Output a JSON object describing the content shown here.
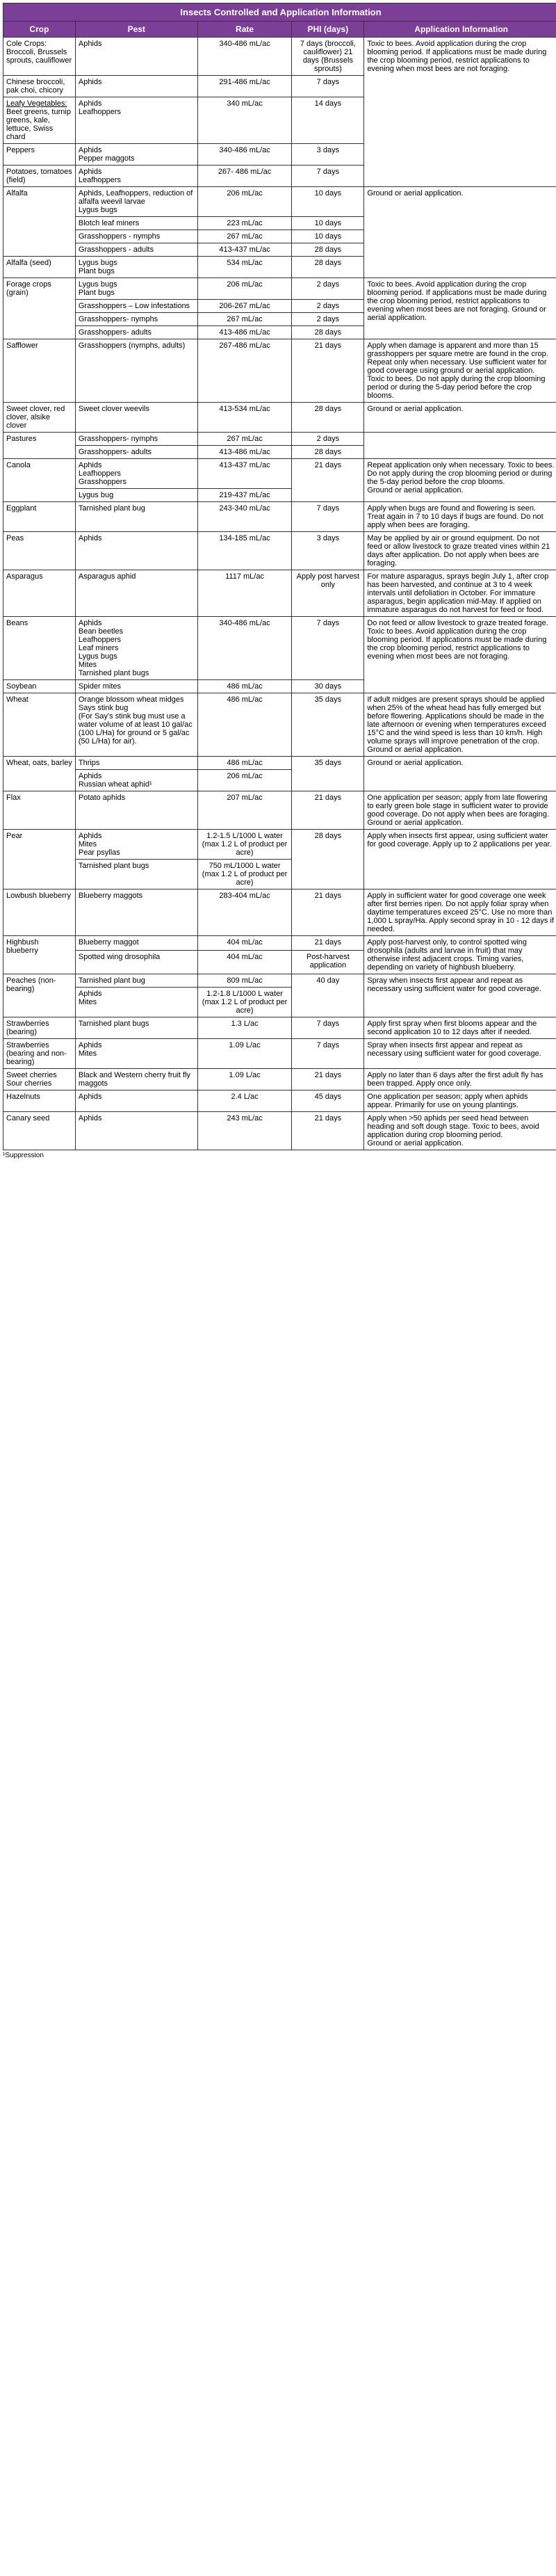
{
  "title": "Insects Controlled and Application Information",
  "headers": {
    "crop": "Crop",
    "pest": "Pest",
    "rate": "Rate",
    "phi": "PHI (days)",
    "appinfo": "Application Information"
  },
  "rows": {
    "cole": {
      "crop_html": "Cole Crops: Broccoli, Brussels sprouts, cauliflower",
      "pest": "Aphids",
      "rate": "340-486 mL/ac",
      "phi": "7 days (broccoli, cauliflower) 21 days (Brussels sprouts)",
      "app": "Toxic to bees. Avoid application during the crop blooming period. If applications must be made during the crop blooming period, restrict applications to evening when most bees are not foraging."
    },
    "chinese": {
      "crop": "Chinese broccoli, pak choi, chicory",
      "pest": "Aphids",
      "rate": "291-486 mL/ac",
      "phi": "7 days"
    },
    "leafy": {
      "crop_label": "Leafy Vegetables:",
      "crop_rest": "Beet greens, turnip greens, kale, lettuce, Swiss chard",
      "pest": "Aphids\nLeafhoppers",
      "rate": "340 mL/ac",
      "phi": "14 days"
    },
    "peppers": {
      "crop": "Peppers",
      "pest": "Aphids\nPepper maggots",
      "rate": "340-486 mL/ac",
      "phi": "3 days"
    },
    "potatoes": {
      "crop": "Potatoes, tomatoes (field)",
      "pest": "Aphids\nLeafhoppers",
      "rate": "267- 486 mL/ac",
      "phi": "7 days"
    },
    "alfalfa": {
      "crop": "Alfalfa",
      "r1": {
        "pest": "Aphids, Leafhoppers, reduction of alfalfa weevil larvae\nLygus bugs",
        "rate": "206 mL/ac",
        "phi": "10 days",
        "app": "Ground or aerial application."
      },
      "r2": {
        "pest": "Blotch leaf miners",
        "rate": "223 mL/ac",
        "phi": "10 days"
      },
      "r3": {
        "pest": "Grasshoppers - nymphs",
        "rate": "267 mL/ac",
        "phi": "10 days"
      },
      "r4": {
        "pest": "Grasshoppers - adults",
        "rate": "413-437 mL/ac",
        "phi": "28 days"
      }
    },
    "alfalfa_seed": {
      "crop": "Alfalfa (seed)",
      "pest": "Lygus bugs\nPlant bugs",
      "rate": "534 mL/ac",
      "phi": "28 days"
    },
    "forage": {
      "crop": "Forage crops (grain)",
      "r1": {
        "pest": "Lygus bugs\nPlant bugs",
        "rate": "206 mL/ac",
        "phi": "2 days"
      },
      "r2": {
        "pest": "Grasshoppers – Low infestations",
        "rate": "206-267 mL/ac",
        "phi": "2 days"
      },
      "r3": {
        "pest": "Grasshoppers- nymphs",
        "rate": "267 mL/ac",
        "phi": "2 days"
      },
      "r4": {
        "pest": "Grasshoppers- adults",
        "rate": "413-486 mL/ac",
        "phi": "28 days"
      },
      "app": "Toxic to bees. Avoid application during the crop blooming period. If applications must be made during the crop blooming period, restrict applications to evening when most bees are not foraging. Ground or aerial application."
    },
    "safflower": {
      "crop": "Safflower",
      "pest": "Grasshoppers (nymphs, adults)",
      "rate": "267-486 mL/ac",
      "phi": "21 days",
      "app": "Apply when damage is apparent and more than 15 grasshoppers per square metre are found in the crop. Repeat only when necessary. Use sufficient water for good coverage using ground or aerial application.\nToxic to bees. Do not apply during the crop blooming period or during the 5-day period before the crop blooms."
    },
    "sweetclover": {
      "crop": "Sweet clover, red clover, alsike clover",
      "pest": "Sweet clover weevils",
      "rate": "413-534 mL/ac",
      "phi": "28 days",
      "app": "Ground or aerial application."
    },
    "pastures": {
      "crop": "Pastures",
      "r1": {
        "pest": "Grasshoppers- nymphs",
        "rate": "267 mL/ac",
        "phi": "2 days"
      },
      "r2": {
        "pest": "Grasshoppers- adults",
        "rate": "413-486 mL/ac",
        "phi": "28 days"
      }
    },
    "canola": {
      "crop": "Canola",
      "r1": {
        "pest": "Aphids\nLeafhoppers\nGrasshoppers",
        "rate": "413-437 mL/ac",
        "phi": "21 days"
      },
      "r2": {
        "pest": "Lygus bug",
        "rate": "219-437 mL/ac"
      },
      "app": "Repeat application only when necessary.  Toxic to bees. Do not apply during the crop blooming period or during the 5-day period before the crop blooms.\nGround or aerial application."
    },
    "eggplant": {
      "crop": "Eggplant",
      "pest": "Tarnished plant bug",
      "rate": "243-340 mL/ac",
      "phi": "7 days",
      "app": "Apply when bugs are found and flowering is seen. Treat again in 7 to 10 days if bugs are found. Do not apply when bees are foraging."
    },
    "peas": {
      "crop": "Peas",
      "pest": "Aphids",
      "rate": "134-185 mL/ac",
      "phi": "3 days",
      "app": "May be applied by air or ground equipment. Do not feed or allow livestock to graze treated vines within 21 days after application. Do not apply when bees are foraging."
    },
    "asparagus": {
      "crop": "Asparagus",
      "pest": "Asparagus aphid",
      "rate": "1117 mL/ac",
      "phi": "Apply post harvest only",
      "app": "For mature asparagus, sprays begin July 1, after crop has been harvested, and continue at 3 to 4 week intervals until defoliation in October. For immature asparagus, begin application mid-May. If applied on immature asparagus do not harvest for feed or food."
    },
    "beans": {
      "crop": "Beans",
      "pest": "Aphids\nBean beetles\nLeafhoppers\nLeaf miners\nLygus bugs\nMites\nTarnished plant bugs",
      "rate": "340-486 mL/ac",
      "phi": "7 days",
      "app": "Do not feed or allow livestock to graze treated forage. Toxic to bees. Avoid application during the crop blooming period. If applications must be made during the crop blooming period, restrict applications to evening when most bees are not foraging."
    },
    "soybean": {
      "crop": "Soybean",
      "pest": "Spider mites",
      "rate": "486 mL/ac",
      "phi": "30 days"
    },
    "wheat": {
      "crop": "Wheat",
      "pest": "Orange blossom wheat midges\nSays stink bug\n(For Say's stink bug must use a water volume of at least 10 gal/ac (100 L/Ha) for ground or 5 gal/ac (50 L/Ha) for air).",
      "rate": "486 mL/ac",
      "phi": "35 days",
      "app": "If adult midges are present sprays should be applied when 25% of the wheat head has fully emerged but before flowering. Applications should be made in the late afternoon or evening when temperatures exceed 15°C and the wind speed is less than 10 km/h. High volume sprays will improve penetration of the crop. Ground or aerial application."
    },
    "wob": {
      "crop": "Wheat, oats, barley",
      "r1": {
        "pest": "Thrips",
        "rate": "486 mL/ac",
        "phi": "35 days"
      },
      "r2": {
        "pest": "Aphids\nRussian wheat aphid¹",
        "rate": "206 mL/ac"
      },
      "app": "Ground or aerial application."
    },
    "flax": {
      "crop": "Flax",
      "pest": "Potato aphids",
      "rate": "207 mL/ac",
      "phi": "21 days",
      "app": "One application per season; apply from late flowering to early green bole stage in sufficient water to provide good coverage. Do not apply when bees are foraging.\nGround or aerial application."
    },
    "pear": {
      "crop": "Pear",
      "r1": {
        "pest": "Aphids\nMites\nPear psyllas",
        "rate": "1.2-1.5 L/1000 L water\n(max 1.2 L of product per acre)",
        "phi": "28 days"
      },
      "r2": {
        "pest": "Tarnished plant bugs",
        "rate": "750 mL/1000 L water\n(max 1.2 L of product per acre)"
      },
      "app": "Apply when insects first appear, using sufficient water for good coverage. Apply up to 2 applications per year."
    },
    "lowbb": {
      "crop": "Lowbush blueberry",
      "pest": "Blueberry maggots",
      "rate": "283-404 mL/ac",
      "phi": "21 days",
      "app": "Apply in sufficient water for good coverage one week after first berries ripen. Do not apply foliar spray when daytime temperatures exceed 25°C. Use no more than 1,000 L spray/Ha. Apply second spray in 10 - 12 days if needed."
    },
    "highbb": {
      "crop": "Highbush blueberry",
      "r1": {
        "pest": "Blueberry maggot",
        "rate": "404 mL/ac",
        "phi": "21 days"
      },
      "r2": {
        "pest": "Spotted wing drosophila",
        "rate": "404 mL/ac",
        "phi": "Post-harvest application"
      },
      "app": "Apply post-harvest only, to control spotted wing drosophila (adults and larvae in fruit) that may otherwise infest adjacent crops. Timing varies, depending on variety of highbush blueberry."
    },
    "peaches": {
      "crop": "Peaches (non-bearing)",
      "r1": {
        "pest": "Tarnished plant bug",
        "rate": "809 mL/ac",
        "phi": "40 day"
      },
      "r2": {
        "pest": "Aphids\nMites",
        "rate": "1.2-1.8 L/1000 L water\n(max 1.2 L of product per acre)"
      },
      "app": "Spray when insects first appear and repeat as necessary using sufficient water for good coverage."
    },
    "straw_b": {
      "crop": "Strawberries (bearing)",
      "pest": "Tarnished plant bugs",
      "rate": "1.3 L/ac",
      "phi": "7 days",
      "app": "Apply first spray when first blooms appear and the second application 10 to 12 days after if needed."
    },
    "straw_nb": {
      "crop": "Strawberries (bearing and non-bearing)",
      "pest": "Aphids\nMites",
      "rate": "1.09 L/ac",
      "phi": "7 days",
      "app": "Spray when insects first appear and repeat as necessary using sufficient water for good coverage."
    },
    "cherries": {
      "crop": "Sweet cherries Sour cherries",
      "pest": "Black and Western cherry fruit fly maggots",
      "rate": "1.09 L/ac",
      "phi": "21 days",
      "app": "Apply no later than 6 days after the first adult fly has been trapped. Apply once only."
    },
    "hazel": {
      "crop": "Hazelnuts",
      "pest": "Aphids",
      "rate": "2.4 L/ac",
      "phi": "45 days",
      "app": "One application per season; apply when aphids appear. Primarily for use on young plantings."
    },
    "canary": {
      "crop": "Canary seed",
      "pest": "Aphids",
      "rate": "243 mL/ac",
      "phi": "21 days",
      "app": "Apply when >50 aphids per seed head between heading and soft dough stage. Toxic to bees, avoid application during crop blooming period.\nGround or aerial application."
    }
  },
  "footnote": "¹Suppression"
}
